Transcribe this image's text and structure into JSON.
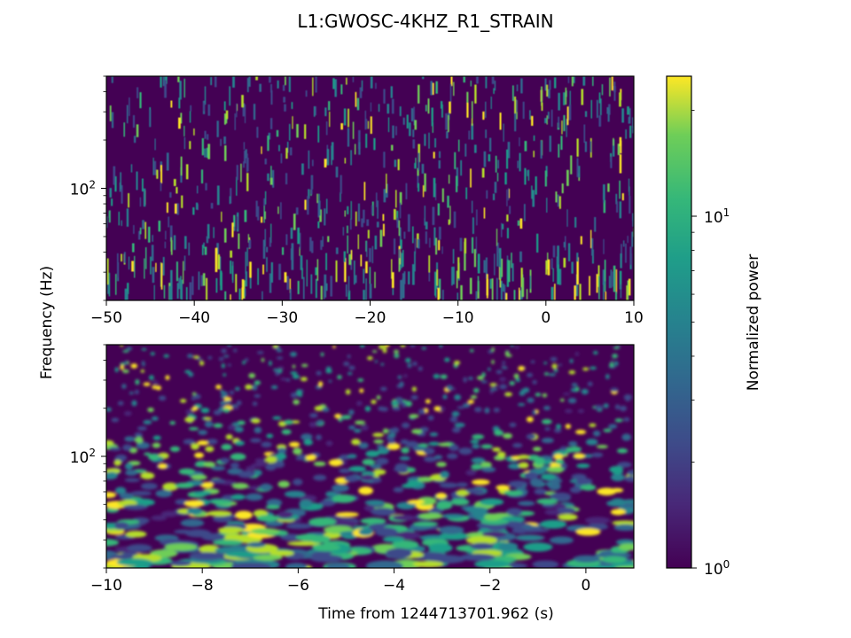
{
  "chart_data": {
    "title": "L1:GWOSC-4KHZ_R1_STRAIN",
    "shared_ylabel": "Frequency (Hz)",
    "colorscale": "viridis",
    "panels": [
      {
        "type": "heatmap",
        "xlim": [
          -50,
          10
        ],
        "x_ticks": [
          -50,
          -40,
          -30,
          -20,
          -10,
          0,
          10
        ],
        "x_tick_labels": [
          "−50",
          "−40",
          "−30",
          "−20",
          "−10",
          "0",
          "10"
        ],
        "yscale": "log",
        "ylim": [
          20,
          500
        ],
        "y_major_ticks": [
          100
        ],
        "y_tick_labels": [
          "10^2"
        ],
        "xlabel": ""
      },
      {
        "type": "heatmap",
        "xlim": [
          -10,
          1
        ],
        "x_ticks": [
          -10,
          -8,
          -6,
          -4,
          -2,
          0
        ],
        "x_tick_labels": [
          "−10",
          "−8",
          "−6",
          "−4",
          "−2",
          "0"
        ],
        "yscale": "log",
        "ylim": [
          20,
          500
        ],
        "y_major_ticks": [
          100
        ],
        "y_tick_labels": [
          "10^2"
        ],
        "xlabel": "Time from 1244713701.962 (s)"
      }
    ],
    "colorbar": {
      "label": "Normalized power",
      "scale": "log",
      "range": [
        1,
        25
      ],
      "major_ticks": [
        1,
        10
      ],
      "tick_labels": [
        "10^0",
        "10^1"
      ]
    }
  }
}
